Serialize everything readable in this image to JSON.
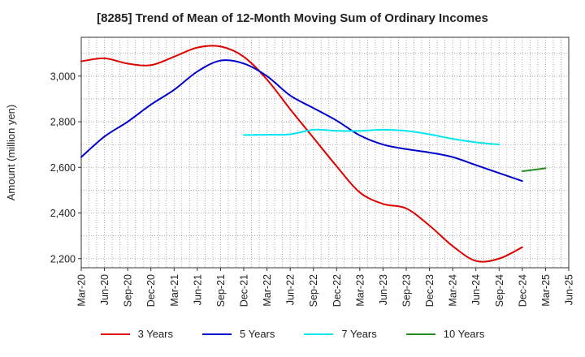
{
  "chart_data": {
    "type": "line",
    "title": "[8285]  Trend of Mean of 12-Month Moving Sum of Ordinary Incomes",
    "xlabel": "",
    "ylabel": "Amount (million yen)",
    "ylim": [
      2160,
      3170
    ],
    "yticks": [
      2200,
      2400,
      2600,
      2800,
      3000
    ],
    "ytick_labels": [
      "2,200",
      "2,400",
      "2,600",
      "2,800",
      "3,000"
    ],
    "categories": [
      "Mar-20",
      "Jun-20",
      "Sep-20",
      "Dec-20",
      "Mar-21",
      "Jun-21",
      "Sep-21",
      "Dec-21",
      "Mar-22",
      "Jun-22",
      "Sep-22",
      "Dec-22",
      "Mar-23",
      "Jun-23",
      "Sep-23",
      "Dec-23",
      "Mar-24",
      "Jun-24",
      "Sep-24",
      "Dec-24",
      "Mar-25",
      "Jun-25"
    ],
    "grid": true,
    "series": [
      {
        "name": "3 Years",
        "color": "#dd0000",
        "values": [
          3065,
          3078,
          3055,
          3048,
          3085,
          3125,
          3130,
          3085,
          2985,
          2855,
          2730,
          2605,
          2490,
          2440,
          2420,
          2345,
          2255,
          2190,
          2200,
          2250,
          null,
          null
        ]
      },
      {
        "name": "5 Years",
        "color": "#0000cc",
        "values": [
          2645,
          2735,
          2800,
          2875,
          2940,
          3020,
          3068,
          3055,
          3000,
          2915,
          2860,
          2805,
          2740,
          2700,
          2680,
          2665,
          2645,
          2610,
          2575,
          2540,
          null,
          null
        ]
      },
      {
        "name": "7 Years",
        "color": "#00e5ee",
        "values": [
          null,
          null,
          null,
          null,
          null,
          null,
          null,
          2742,
          2743,
          2745,
          2765,
          2760,
          2760,
          2765,
          2760,
          2745,
          2725,
          2710,
          2700,
          null,
          null,
          null
        ]
      },
      {
        "name": "10 Years",
        "color": "#228b22",
        "values": [
          null,
          null,
          null,
          null,
          null,
          null,
          null,
          null,
          null,
          null,
          null,
          null,
          null,
          null,
          null,
          null,
          null,
          null,
          null,
          2583,
          2596,
          null
        ]
      }
    ]
  }
}
